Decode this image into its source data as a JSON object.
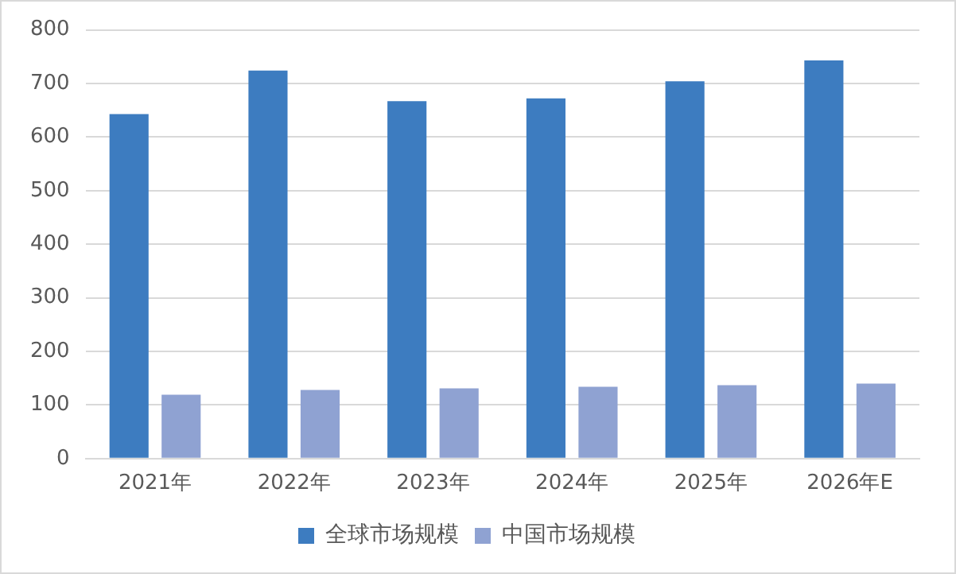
{
  "chart_data": {
    "type": "bar",
    "categories": [
      "2021年",
      "2022年",
      "2023年",
      "2024年",
      "2025年",
      "2026年E"
    ],
    "series": [
      {
        "name": "全球市场规模",
        "color": "#3d7cc0",
        "values": [
          643,
          724,
          667,
          672,
          704,
          743
        ]
      },
      {
        "name": "中国市场规模",
        "color": "#8fa2d2",
        "values": [
          119,
          128,
          131,
          134,
          137,
          140
        ]
      }
    ],
    "ylim": [
      0,
      800
    ],
    "yticks": [
      0,
      100,
      200,
      300,
      400,
      500,
      600,
      700,
      800
    ],
    "grid": "y",
    "legend": "bottom"
  }
}
